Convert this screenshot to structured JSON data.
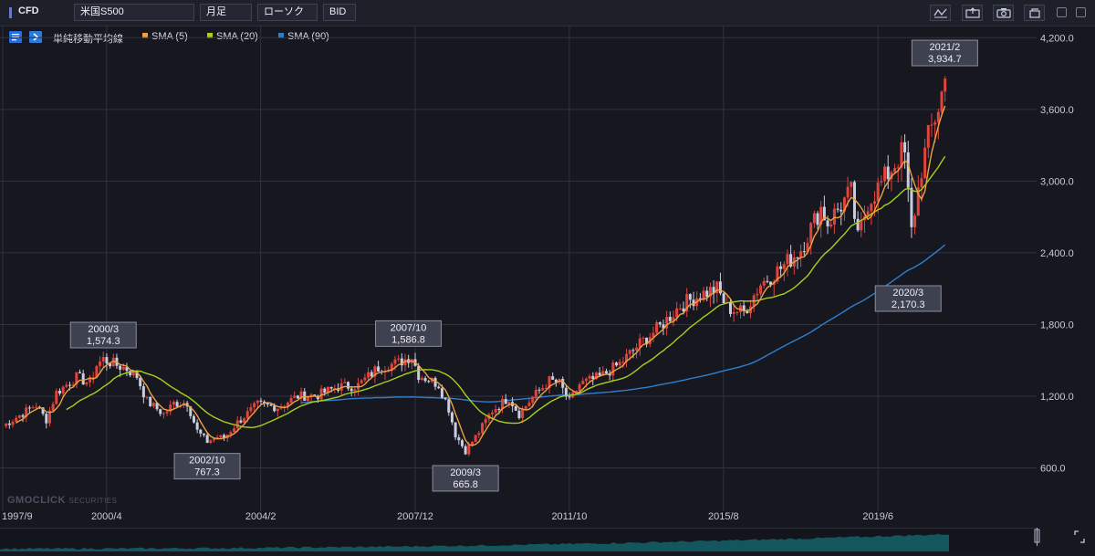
{
  "toolbar": {
    "product_type": "CFD",
    "symbol": "米国S500",
    "timeframe": "月足",
    "chart_style": "ローソク",
    "price_side": "BID"
  },
  "legend": {
    "indicator_name": "単純移動平均線",
    "sma5_label": "SMA (5)",
    "sma20_label": "SMA (20)",
    "sma90_label": "SMA (90)"
  },
  "watermark": {
    "brand": "GMOCLICK",
    "suffix": "SECURITIES"
  },
  "colors": {
    "background": "#16171f",
    "grid": "#2f3240",
    "candle_up": "#e0443c",
    "candle_down": "#c9cde0",
    "sma5": "#f0a040",
    "sma20": "#a8d020",
    "sma90": "#2f7fd0",
    "volume": "#14565e"
  },
  "chart_data": {
    "type": "candlestick",
    "title": "",
    "xlabel": "",
    "ylabel": "",
    "ylim": [
      400,
      4500
    ],
    "yticks": [
      "4,200.0",
      "3,600.0",
      "3,000.0",
      "2,400.0",
      "1,800.0",
      "1,200.0",
      "600.0"
    ],
    "ytick_values": [
      4200,
      3600,
      3000,
      2400,
      1800,
      1200,
      600
    ],
    "xticks": [
      "1997/9",
      "2000/4",
      "2004/2",
      "2007/12",
      "2011/10",
      "2015/8",
      "2019/6"
    ],
    "xtick_values": [
      1997.67,
      2000.25,
      2004.08,
      2007.92,
      2011.75,
      2015.58,
      2019.42
    ],
    "x_range": [
      1997.67,
      2023.25
    ],
    "close_anchors": [
      [
        1997.67,
        950
      ],
      [
        1998.5,
        1130
      ],
      [
        1998.75,
        1000
      ],
      [
        1999.0,
        1230
      ],
      [
        1999.5,
        1360
      ],
      [
        1999.83,
        1310
      ],
      [
        2000.0,
        1460
      ],
      [
        2000.17,
        1510
      ],
      [
        2000.5,
        1460
      ],
      [
        2000.75,
        1430
      ],
      [
        2001.0,
        1370
      ],
      [
        2001.25,
        1160
      ],
      [
        2001.67,
        1050
      ],
      [
        2001.92,
        1140
      ],
      [
        2002.25,
        1150
      ],
      [
        2002.5,
        910
      ],
      [
        2002.75,
        820
      ],
      [
        2003.0,
        860
      ],
      [
        2003.17,
        850
      ],
      [
        2003.5,
        980
      ],
      [
        2004.0,
        1130
      ],
      [
        2004.5,
        1110
      ],
      [
        2005.0,
        1200
      ],
      [
        2005.5,
        1210
      ],
      [
        2006.0,
        1280
      ],
      [
        2006.5,
        1290
      ],
      [
        2007.0,
        1440
      ],
      [
        2007.5,
        1480
      ],
      [
        2007.83,
        1540
      ],
      [
        2008.0,
        1380
      ],
      [
        2008.5,
        1300
      ],
      [
        2008.75,
        1100
      ],
      [
        2008.92,
        880
      ],
      [
        2009.17,
        740
      ],
      [
        2009.5,
        900
      ],
      [
        2009.83,
        1080
      ],
      [
        2010.25,
        1190
      ],
      [
        2010.5,
        1050
      ],
      [
        2010.83,
        1190
      ],
      [
        2011.25,
        1330
      ],
      [
        2011.5,
        1310
      ],
      [
        2011.75,
        1150
      ],
      [
        2012.0,
        1300
      ],
      [
        2012.5,
        1360
      ],
      [
        2013.0,
        1470
      ],
      [
        2013.5,
        1640
      ],
      [
        2014.0,
        1780
      ],
      [
        2014.5,
        1960
      ],
      [
        2015.0,
        2050
      ],
      [
        2015.42,
        2100
      ],
      [
        2015.67,
        1940
      ],
      [
        2016.08,
        1900
      ],
      [
        2016.5,
        2140
      ],
      [
        2017.0,
        2270
      ],
      [
        2017.5,
        2430
      ],
      [
        2018.0,
        2780
      ],
      [
        2018.17,
        2650
      ],
      [
        2018.75,
        2910
      ],
      [
        2018.92,
        2510
      ],
      [
        2019.17,
        2830
      ],
      [
        2019.5,
        2980
      ],
      [
        2020.0,
        3230
      ],
      [
        2020.08,
        3240
      ],
      [
        2020.25,
        2570
      ],
      [
        2020.5,
        3100
      ],
      [
        2020.67,
        3360
      ],
      [
        2020.92,
        3620
      ],
      [
        2021.08,
        3840
      ]
    ],
    "series": [
      {
        "name": "SMA (5)",
        "key": "sma5",
        "period": 5
      },
      {
        "name": "SMA (20)",
        "key": "sma20",
        "period": 20
      },
      {
        "name": "SMA (90)",
        "key": "sma90",
        "period": 90
      }
    ],
    "annotations": [
      {
        "date": "2000/3",
        "value": "1,574.3",
        "x": 2000.17,
        "y": 1574.3,
        "position": "above"
      },
      {
        "date": "2002/10",
        "value": "767.3",
        "x": 2002.75,
        "y": 767.3,
        "position": "below"
      },
      {
        "date": "2007/10",
        "value": "1,586.8",
        "x": 2007.75,
        "y": 1586.8,
        "position": "above"
      },
      {
        "date": "2009/3",
        "value": "665.8",
        "x": 2009.17,
        "y": 665.8,
        "position": "below"
      },
      {
        "date": "2020/3",
        "value": "2,170.3",
        "x": 2020.17,
        "y": 2170.3,
        "position": "below"
      },
      {
        "date": "2021/2",
        "value": "3,934.7",
        "x": 2021.08,
        "y": 3934.7,
        "position": "above"
      }
    ]
  }
}
